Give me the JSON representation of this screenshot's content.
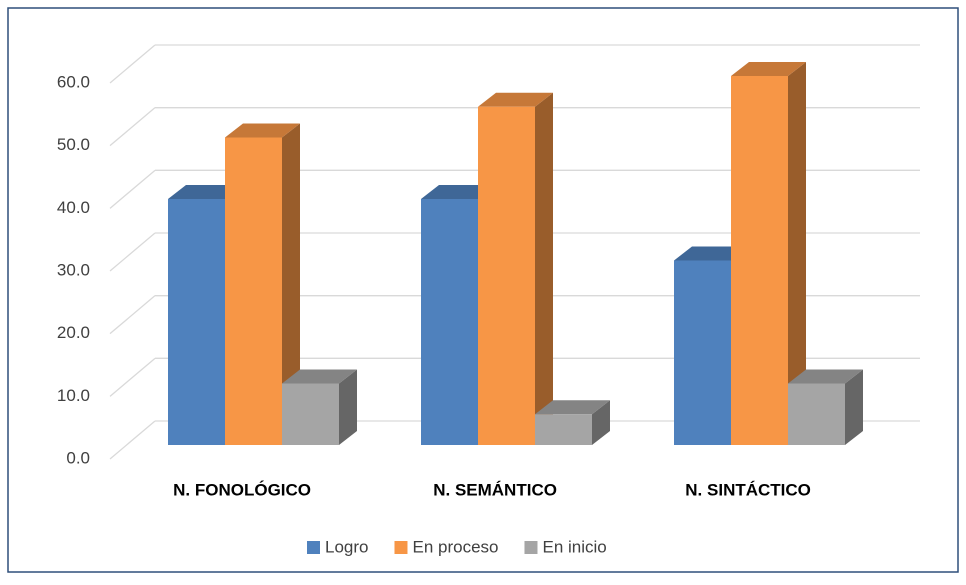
{
  "chart_data": {
    "type": "bar3d",
    "categories": [
      "N. FONOLÓGICO",
      "N. SEMÁNTICO",
      "N. SINTÁCTICO"
    ],
    "series": [
      {
        "name": "Logro",
        "color": "#4f81bd",
        "values": [
          40,
          40,
          30
        ]
      },
      {
        "name": "En proceso",
        "color": "#f79646",
        "values": [
          50,
          55,
          60
        ]
      },
      {
        "name": "En inicio",
        "color": "#a5a5a5",
        "values": [
          10,
          5,
          10
        ]
      }
    ],
    "ylim": [
      0,
      60
    ],
    "yticks": [
      {
        "value": 0,
        "label": "0.0"
      },
      {
        "value": 10,
        "label": "10.0"
      },
      {
        "value": 20,
        "label": "20.0"
      },
      {
        "value": 30,
        "label": "30.0"
      },
      {
        "value": 40,
        "label": "40.0"
      },
      {
        "value": 50,
        "label": "50.0"
      },
      {
        "value": 60,
        "label": "60.0"
      }
    ],
    "grid": true,
    "legend": "bottom"
  }
}
